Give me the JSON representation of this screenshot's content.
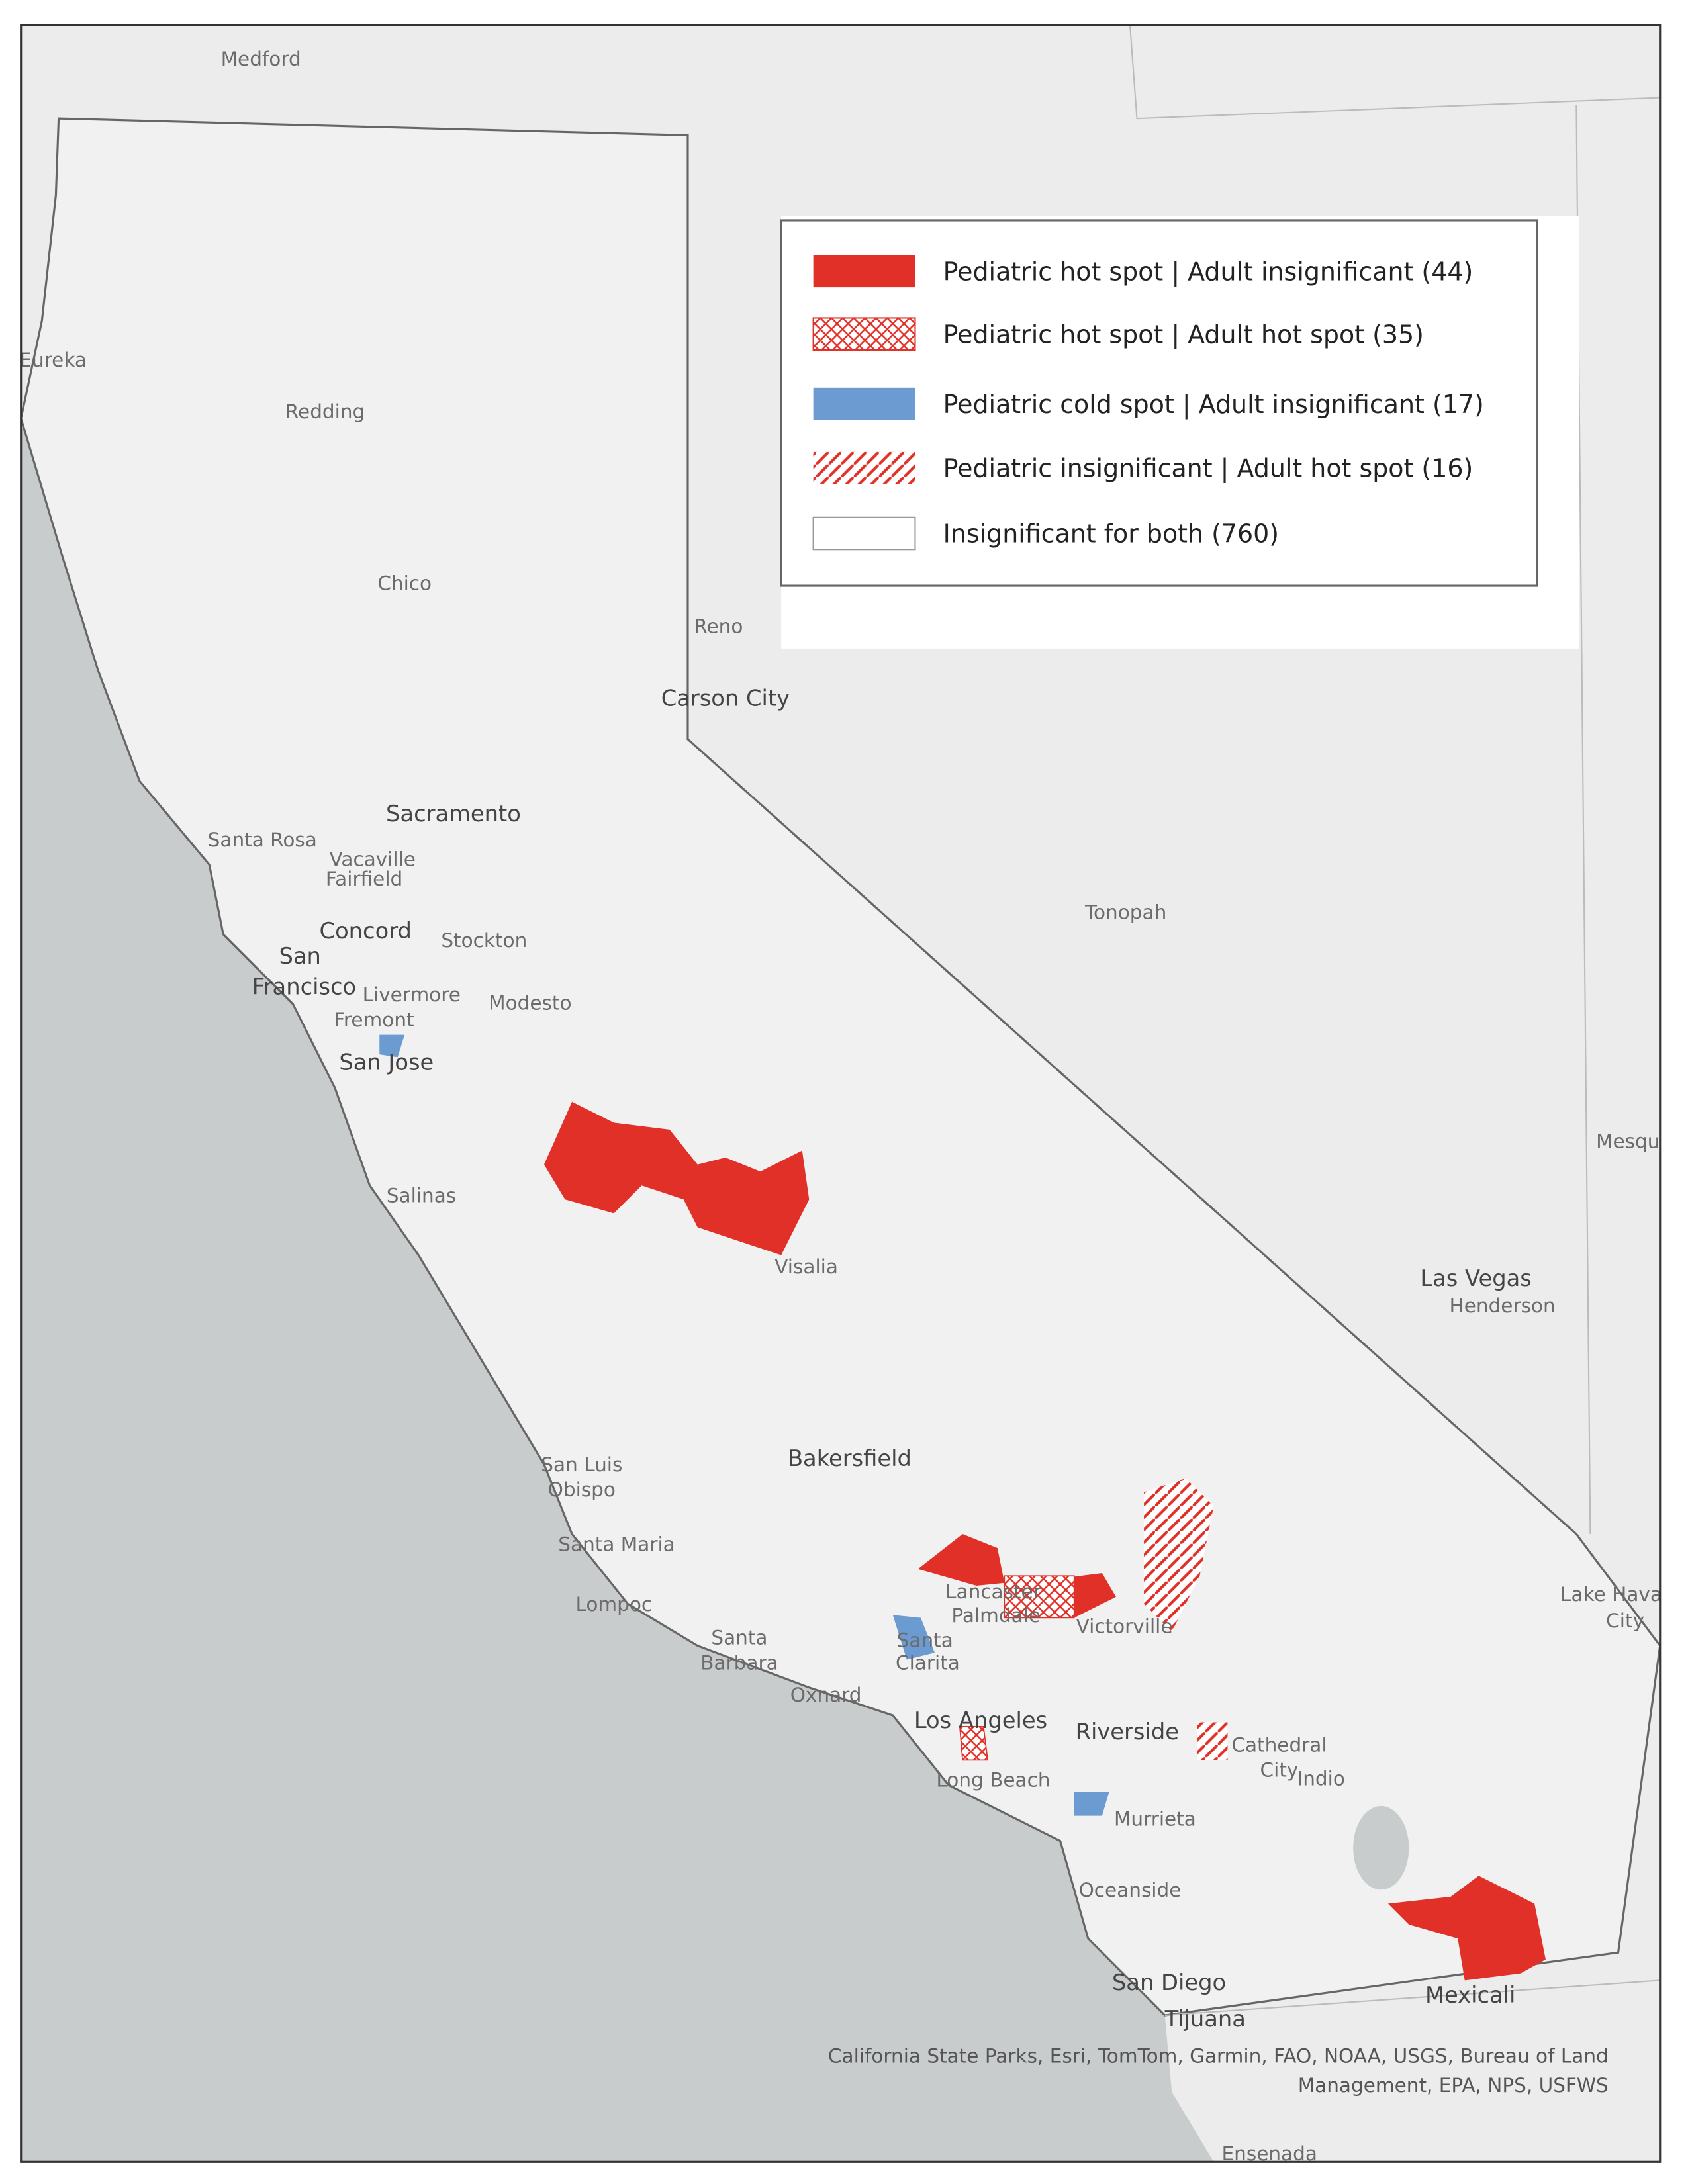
{
  "legend": {
    "items": [
      {
        "label": "Pediatric hot spot | Adult insignificant (44)"
      },
      {
        "label": "Pediatric hot spot | Adult hot spot (35)"
      },
      {
        "label": "Pediatric cold spot | Adult insignificant  (17)"
      },
      {
        "label": "Pediatric insignificant | Adult hot spot  (16)"
      },
      {
        "label": "Insignificant for both (760)"
      }
    ]
  },
  "places": [
    "Medford",
    "Eureka",
    "Redding",
    "Chico",
    "Reno",
    "Carson City",
    "Sacramento",
    "Santa Rosa",
    "Vacaville",
    "Fairfield",
    "Concord",
    "San",
    "Francisco",
    "Stockton",
    "Livermore",
    "Modesto",
    "Fremont",
    "San Jose",
    "Tonopah",
    "Salinas",
    "Visalia",
    "Mesqu",
    "Las Vegas",
    "Henderson",
    "Bakersfield",
    "San Luis",
    "Obispo",
    "Santa Maria",
    "Lompoc",
    "Santa",
    "Barbara",
    "Lancaster",
    "Palmdale",
    "Victorville",
    "Santa",
    "Clarita",
    "Oxnard",
    "Los Angeles",
    "Riverside",
    "Cathedral",
    "City",
    "Indio",
    "Lake Hava",
    "City",
    "Long Beach",
    "Murrieta",
    "Oceanside",
    "San Diego",
    "Tijuana",
    "Mexicali",
    "Ensenada"
  ],
  "attribution": [
    "California State Parks, Esri, TomTom, Garmin, FAO, NOAA, USGS, Bureau of Land",
    "Management, EPA, NPS, USFWS"
  ]
}
